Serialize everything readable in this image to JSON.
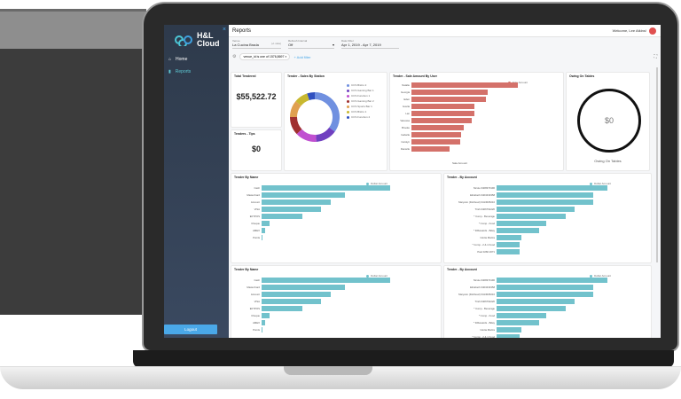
{
  "app": {
    "logo_line1": "H&L",
    "logo_line2": "Cloud",
    "close_icon": "×"
  },
  "sidebar": {
    "items": [
      {
        "label": "Home",
        "icon": "home-icon"
      },
      {
        "label": "Reports",
        "icon": "bar-chart-icon",
        "active": true
      }
    ],
    "logout": "Logout"
  },
  "header": {
    "title": "Reports",
    "welcome": "Welcome, Lee Atkins!"
  },
  "filters": {
    "venue": {
      "label": "Venue",
      "value": "La Cucina Brada",
      "extra": "(+1 value)"
    },
    "refresh": {
      "label": "Refresh Interval",
      "value": "Off"
    },
    "date": {
      "label": "Date Filter",
      "value": "Apr 1, 2019 - Apr 7, 2019"
    },
    "chip": "venue_id is one of 1576,8697",
    "add_filter": "+ Add filter"
  },
  "cards": {
    "total_tendered": {
      "title": "Total Tendered",
      "value": "$55,522.72"
    },
    "tips": {
      "title": "Tenders - Tips",
      "value": "$0"
    },
    "owing": {
      "title": "Owing On Tables",
      "value": "$0",
      "caption": "Owing On Tables"
    }
  },
  "chart_data": [
    {
      "type": "pie",
      "title": "Tender - Sales By Station",
      "categories": [
        "CCS Bistro 2",
        "CCS Gaming Bar 1",
        "CCS Function 1",
        "CCS Gaming Bar 2",
        "CCS Sports Bar 1",
        "CCS Bistro 1",
        "CCS Function 2"
      ],
      "values": [
        35,
        14,
        14,
        12,
        11,
        9,
        5
      ],
      "colors": [
        "#7090e0",
        "#7040c0",
        "#c050d0",
        "#a03030",
        "#e0a050",
        "#c8b830",
        "#3050c0"
      ]
    },
    {
      "type": "bar",
      "title": "Tender - Sale Amount By User",
      "xlabel": "Sale Amount",
      "ylabel": "User",
      "legend": "Sale Amount",
      "color": "#d4716a",
      "categories": [
        "Natalie",
        "Georgia",
        "Eden",
        "Goulia",
        "Lan",
        "Vanessa",
        "Brooke",
        "Isabelle",
        "Carolyn",
        "Danielle"
      ],
      "values": [
        100,
        72,
        70,
        59,
        59,
        57,
        49,
        47,
        46,
        36
      ]
    },
    {
      "type": "bar",
      "title": "Tender By Name",
      "ylabel": "Tender Name",
      "legend": "Dollar Amount",
      "color": "#72c2cc",
      "categories": [
        "Cash",
        "MasterCard",
        "Account",
        "VISA",
        "EFTPOS",
        "Cheque",
        "AMEX",
        "Points"
      ],
      "values": [
        100,
        65,
        54,
        46,
        32,
        6,
        3,
        1
      ]
    },
    {
      "type": "bar",
      "title": "Tender - By Account",
      "ylabel": "Account",
      "legend": "Dollar Amount",
      "color": "#72c2cc",
      "categories": [
        "Nicole 0408370190",
        "Elizabeth 0403433358",
        "Maryann (Fishbowl) 0413005210",
        "Trish 0406762220",
        "* Comp - Beverage",
        "* Comp - Food",
        "* FiRewards - Bday",
        "Gloria Mazza",
        "* Comp - 2-4-1 Food",
        "Paul 0266 2071"
      ],
      "values": [
        100,
        87,
        87,
        70,
        62,
        45,
        38,
        22,
        21,
        21
      ]
    }
  ]
}
